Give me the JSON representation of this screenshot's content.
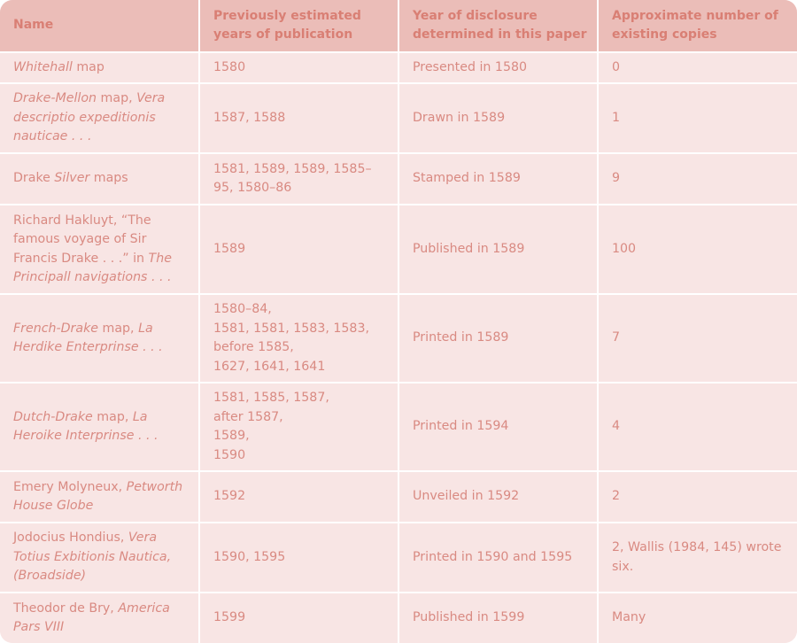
{
  "table": {
    "headers": [
      "Name",
      "Previously estimated years of publication",
      "Year of disclosure determined in this paper",
      "Approximate number of existing copies"
    ],
    "rows": [
      {
        "name": [
          {
            "text": "Whitehall",
            "italic": true
          },
          {
            "text": " map",
            "italic": false
          }
        ],
        "previous": [
          "1580"
        ],
        "disclosure": "Presented in 1580",
        "copies": "0"
      },
      {
        "name": [
          {
            "text": "Drake-Mellon",
            "italic": true
          },
          {
            "text": " map, ",
            "italic": false
          },
          {
            "text": "Vera descriptio expeditionis nauticae . . .",
            "italic": true
          }
        ],
        "previous": [
          "1587, 1588"
        ],
        "disclosure": "Drawn in 1589",
        "copies": "1"
      },
      {
        "name": [
          {
            "text": "Drake ",
            "italic": false
          },
          {
            "text": "Silver",
            "italic": true
          },
          {
            "text": " maps",
            "italic": false
          }
        ],
        "previous": [
          "1581, 1589, 1589, 1585–95, 1580–86"
        ],
        "disclosure": "Stamped in 1589",
        "copies": "9"
      },
      {
        "name": [
          {
            "text": "Richard Hakluyt, “The famous voyage of Sir Francis Drake . . .” in ",
            "italic": false
          },
          {
            "text": "The Principall navigations . . .",
            "italic": true
          }
        ],
        "previous": [
          "1589"
        ],
        "disclosure": "Published in 1589",
        "copies": "100"
      },
      {
        "name": [
          {
            "text": "French-Drake",
            "italic": true
          },
          {
            "text": " map, ",
            "italic": false
          },
          {
            "text": "La Herdike Enterprinse . . .",
            "italic": true
          }
        ],
        "previous": [
          "1580–84,",
          "1581, 1581, 1583, 1583,",
          "before 1585,",
          "1627, 1641, 1641"
        ],
        "disclosure": "Printed in 1589",
        "copies": "7"
      },
      {
        "name": [
          {
            "text": "Dutch-Drake",
            "italic": true
          },
          {
            "text": " map, ",
            "italic": false
          },
          {
            "text": "La Heroike Interprinse . . .",
            "italic": true
          }
        ],
        "previous": [
          "1581, 1585, 1587,",
          "after 1587,",
          "1589,",
          "1590"
        ],
        "disclosure": "Printed in 1594",
        "copies": "4"
      },
      {
        "name": [
          {
            "text": "Emery Molyneux, ",
            "italic": false
          },
          {
            "text": "Petworth House Globe",
            "italic": true
          }
        ],
        "previous": [
          "1592"
        ],
        "disclosure": "Unveiled in 1592",
        "copies": "2"
      },
      {
        "name": [
          {
            "text": "Jodocius Hondius, ",
            "italic": false
          },
          {
            "text": "Vera Totius Exbitionis Nautica, (Broadside)",
            "italic": true
          }
        ],
        "previous": [
          "1590, 1595"
        ],
        "disclosure": "Printed in 1590 and 1595",
        "copies": "2, Wallis (1984, 145) wrote six."
      },
      {
        "name": [
          {
            "text": "Theodor de Bry, ",
            "italic": false
          },
          {
            "text": "America Pars VIII",
            "italic": true
          }
        ],
        "previous": [
          "1599"
        ],
        "disclosure": "Published in 1599",
        "copies": "Many"
      }
    ]
  },
  "colors": {
    "header_bg": "#ebbdb8",
    "body_bg": "#f8e5e4",
    "header_text": "#d97f74",
    "body_text": "#d98a82",
    "divider": "#ffffff"
  }
}
